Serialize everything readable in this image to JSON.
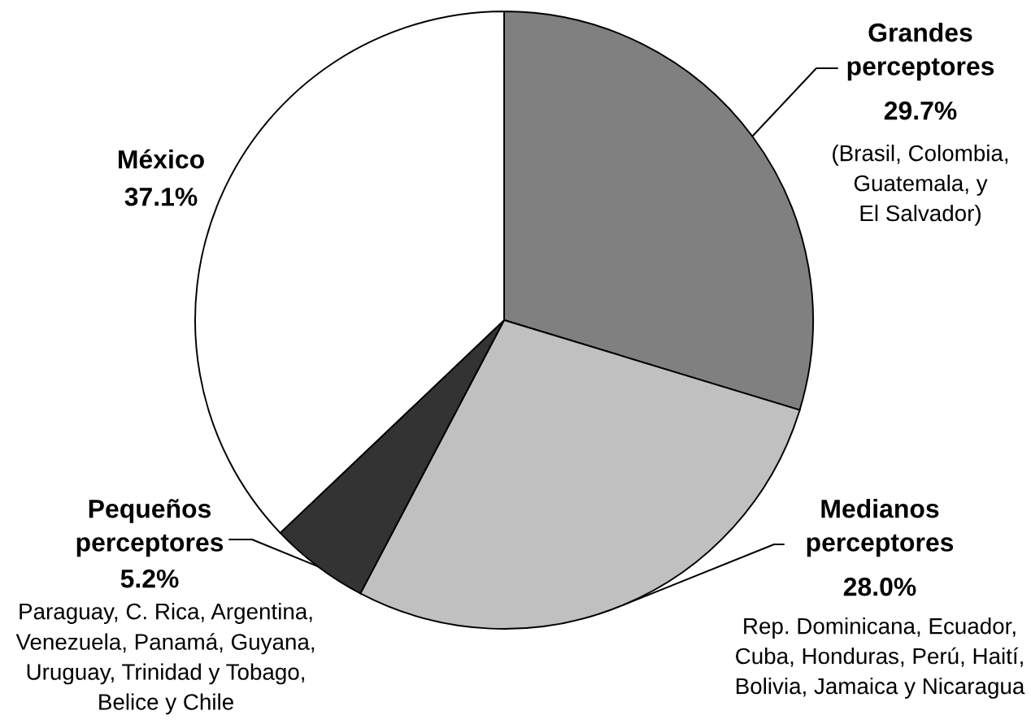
{
  "chart_data": {
    "type": "pie",
    "categories": [
      "Grandes\nperceptores",
      "Medianos\nperceptores",
      "Pequeños\nperceptores",
      "México"
    ],
    "values": [
      29.7,
      28.0,
      5.2,
      37.1
    ],
    "colors": [
      "#808080",
      "#c0c0c0",
      "#333333",
      "#ffffff"
    ],
    "value_labels": [
      "29.7%",
      "28.0%",
      "5.2%",
      "37.1%"
    ],
    "annotations": [
      "(Brasil, Colombia,\nGuatemala, y\nEl Salvador)",
      "Rep. Dominicana, Ecuador,\nCuba, Honduras, Perú, Haití,\nBolivia, Jamaica y Nicaragua",
      "Paraguay, C. Rica, Argentina,\nVenezuela, Panamá, Guyana,\nUruguay, Trinidad y Tobago,\nBelice y Chile"
    ]
  }
}
